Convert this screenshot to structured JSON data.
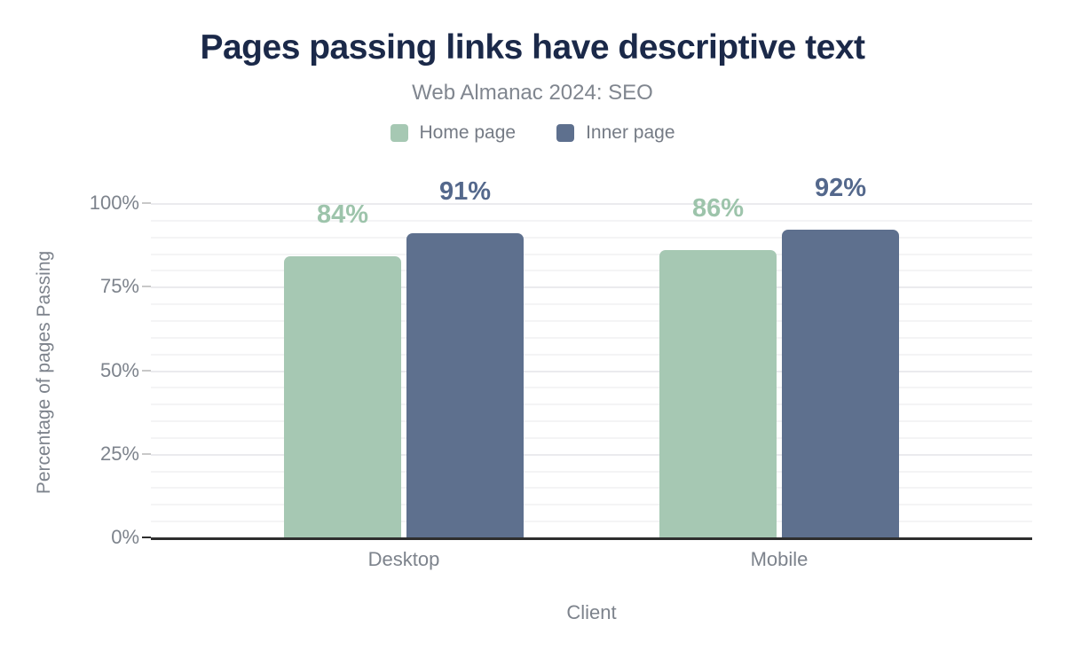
{
  "chart_data": {
    "type": "bar",
    "title": "Pages passing links have descriptive text",
    "subtitle": "Web Almanac 2024: SEO",
    "categories": [
      "Desktop",
      "Mobile"
    ],
    "series": [
      {
        "name": "Home page",
        "values": [
          84,
          86
        ],
        "color": "#a6c8b3",
        "label_color": "#9dc4ab"
      },
      {
        "name": "Inner page",
        "values": [
          91,
          92
        ],
        "color": "#5e708e",
        "label_color": "#54688c"
      }
    ],
    "value_suffix": "%",
    "xlabel": "Client",
    "ylabel": "Percentage of pages Passing",
    "ylim": [
      0,
      100
    ],
    "y_ticks": [
      0,
      25,
      50,
      75,
      100
    ],
    "y_tick_labels": [
      "0%",
      "25%",
      "50%",
      "75%",
      "100%"
    ],
    "grid": "horizontal minor lines every 5%, major every 25%",
    "legend_position": "top center",
    "bar_value_labels": [
      "84%",
      "91%",
      "86%",
      "92%"
    ]
  },
  "colors": {
    "background": "#ffffff",
    "title": "#1b2949",
    "secondary_text": "#7d838c",
    "subtitle_text": "#80868f",
    "axis_line": "#2e2e2e",
    "gridline_minor": "#f4f4f5",
    "gridline_major": "#ebebee",
    "home_page_bar": "#a6c8b3",
    "inner_page_bar": "#5e708e"
  }
}
